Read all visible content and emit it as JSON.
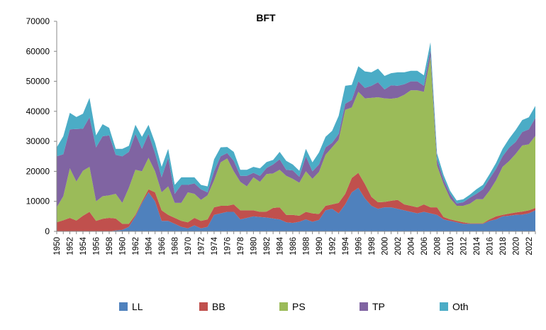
{
  "chart_data": {
    "type": "area",
    "stacked": true,
    "title": "BFT",
    "xlabel": "",
    "ylabel": "",
    "ylim": [
      0,
      70000
    ],
    "yticks": [
      0,
      10000,
      20000,
      30000,
      40000,
      50000,
      60000,
      70000
    ],
    "xticks": [
      1950,
      1952,
      1954,
      1956,
      1958,
      1960,
      1962,
      1964,
      1966,
      1968,
      1970,
      1972,
      1974,
      1976,
      1978,
      1980,
      1982,
      1984,
      1986,
      1988,
      1990,
      1992,
      1994,
      1996,
      1998,
      2000,
      2002,
      2004,
      2006,
      2008,
      2010,
      2012,
      2014,
      2016,
      2018,
      2020,
      2022
    ],
    "grid": false,
    "legend_position": "bottom",
    "x": [
      1950,
      1951,
      1952,
      1953,
      1954,
      1955,
      1956,
      1957,
      1958,
      1959,
      1960,
      1961,
      1962,
      1963,
      1964,
      1965,
      1966,
      1967,
      1968,
      1969,
      1970,
      1971,
      1972,
      1973,
      1974,
      1975,
      1976,
      1977,
      1978,
      1979,
      1980,
      1981,
      1982,
      1983,
      1984,
      1985,
      1986,
      1987,
      1988,
      1989,
      1990,
      1991,
      1992,
      1993,
      1994,
      1995,
      1996,
      1997,
      1998,
      1999,
      2000,
      2001,
      2002,
      2003,
      2004,
      2005,
      2006,
      2007,
      2008,
      2009,
      2010,
      2011,
      2012,
      2013,
      2014,
      2015,
      2016,
      2017,
      2018,
      2019,
      2020,
      2021,
      2022,
      2023
    ],
    "series": [
      {
        "name": "LL",
        "color": "#4F81BD",
        "values": [
          0,
          0,
          0,
          0,
          0,
          0,
          0,
          0,
          0,
          300,
          500,
          1500,
          5000,
          9500,
          13000,
          10000,
          3500,
          3500,
          2500,
          1500,
          1000,
          2000,
          1000,
          1500,
          5500,
          6000,
          6500,
          6500,
          4000,
          4500,
          5000,
          4800,
          4600,
          4300,
          4000,
          3000,
          2800,
          3200,
          4000,
          3200,
          3800,
          7000,
          7500,
          6000,
          9000,
          13000,
          14500,
          11000,
          8500,
          7500,
          8000,
          8000,
          7500,
          7000,
          6500,
          6000,
          6500,
          6000,
          5500,
          4000,
          3500,
          3000,
          2500,
          2500,
          2500,
          2500,
          3500,
          4000,
          5000,
          5200,
          5500,
          5600,
          6000,
          7000
        ]
      },
      {
        "name": "BB",
        "color": "#C0504D",
        "values": [
          3000,
          3700,
          4500,
          3600,
          5200,
          6500,
          3500,
          4200,
          4500,
          4000,
          2000,
          1000,
          500,
          500,
          1000,
          3000,
          3500,
          2000,
          2000,
          2000,
          2000,
          2500,
          2500,
          2500,
          2500,
          2500,
          2000,
          2500,
          3000,
          2500,
          2000,
          1700,
          2000,
          3500,
          4000,
          2500,
          2700,
          2000,
          2500,
          2800,
          2000,
          1500,
          1500,
          3500,
          3500,
          4800,
          5000,
          4800,
          3000,
          2200,
          1800,
          2200,
          3000,
          2000,
          2000,
          2000,
          2500,
          2000,
          2500,
          800,
          500,
          500,
          500,
          200,
          200,
          200,
          500,
          1000,
          500,
          700,
          800,
          1000,
          1000,
          800
        ]
      },
      {
        "name": "PS",
        "color": "#9BBB59",
        "values": [
          5000,
          8000,
          16500,
          13000,
          15000,
          15000,
          6500,
          7500,
          7500,
          8200,
          7000,
          12000,
          15000,
          10000,
          10500,
          7000,
          6000,
          9500,
          5000,
          6000,
          10000,
          8000,
          7000,
          8000,
          9000,
          14500,
          15800,
          11000,
          9500,
          8000,
          11000,
          10000,
          12500,
          11500,
          12500,
          13000,
          12000,
          11000,
          13500,
          11500,
          14000,
          17000,
          19000,
          21000,
          28000,
          23500,
          27000,
          28500,
          33000,
          35000,
          34500,
          34000,
          34000,
          36500,
          38500,
          39000,
          37500,
          50000,
          14000,
          11000,
          7000,
          5000,
          5500,
          6500,
          8000,
          8000,
          9500,
          12000,
          16000,
          17500,
          19500,
          22000,
          22000,
          24000
        ]
      },
      {
        "name": "TP",
        "color": "#8064A2",
        "values": [
          17000,
          14000,
          13000,
          17500,
          14000,
          16500,
          18000,
          20000,
          20000,
          13000,
          15500,
          12000,
          12000,
          7500,
          8000,
          6000,
          5000,
          9500,
          3000,
          6000,
          2500,
          3500,
          3500,
          1000,
          3000,
          2000,
          1800,
          3500,
          2000,
          3500,
          1500,
          2000,
          2000,
          3000,
          3500,
          2000,
          2800,
          2000,
          5000,
          2500,
          2500,
          2500,
          1500,
          2000,
          2000,
          2500,
          3500,
          3500,
          4000,
          5000,
          3000,
          4500,
          4000,
          3500,
          3000,
          3000,
          2000,
          2500,
          2000,
          1500,
          1500,
          800,
          1200,
          2000,
          1800,
          3300,
          4000,
          3800,
          3500,
          4500,
          4000,
          4500,
          5000,
          6000
        ]
      },
      {
        "name": "Oth",
        "color": "#4BACC6",
        "values": [
          3000,
          6000,
          5500,
          4000,
          5000,
          6500,
          4000,
          4000,
          2500,
          2000,
          2500,
          2000,
          3000,
          4000,
          3000,
          3500,
          3500,
          3000,
          3000,
          2500,
          2500,
          2000,
          1500,
          2000,
          4000,
          3000,
          2000,
          3000,
          2000,
          2000,
          2000,
          2500,
          2000,
          1500,
          2500,
          3000,
          2000,
          2000,
          2500,
          3000,
          4000,
          3500,
          4000,
          6000,
          6000,
          5000,
          5000,
          5500,
          4500,
          4500,
          4500,
          4000,
          4500,
          4000,
          3500,
          3500,
          3500,
          2500,
          2000,
          1500,
          1000,
          1000,
          1000,
          1000,
          1500,
          1500,
          1500,
          2000,
          2500,
          3000,
          4000,
          4000,
          4000,
          4000
        ]
      }
    ]
  }
}
